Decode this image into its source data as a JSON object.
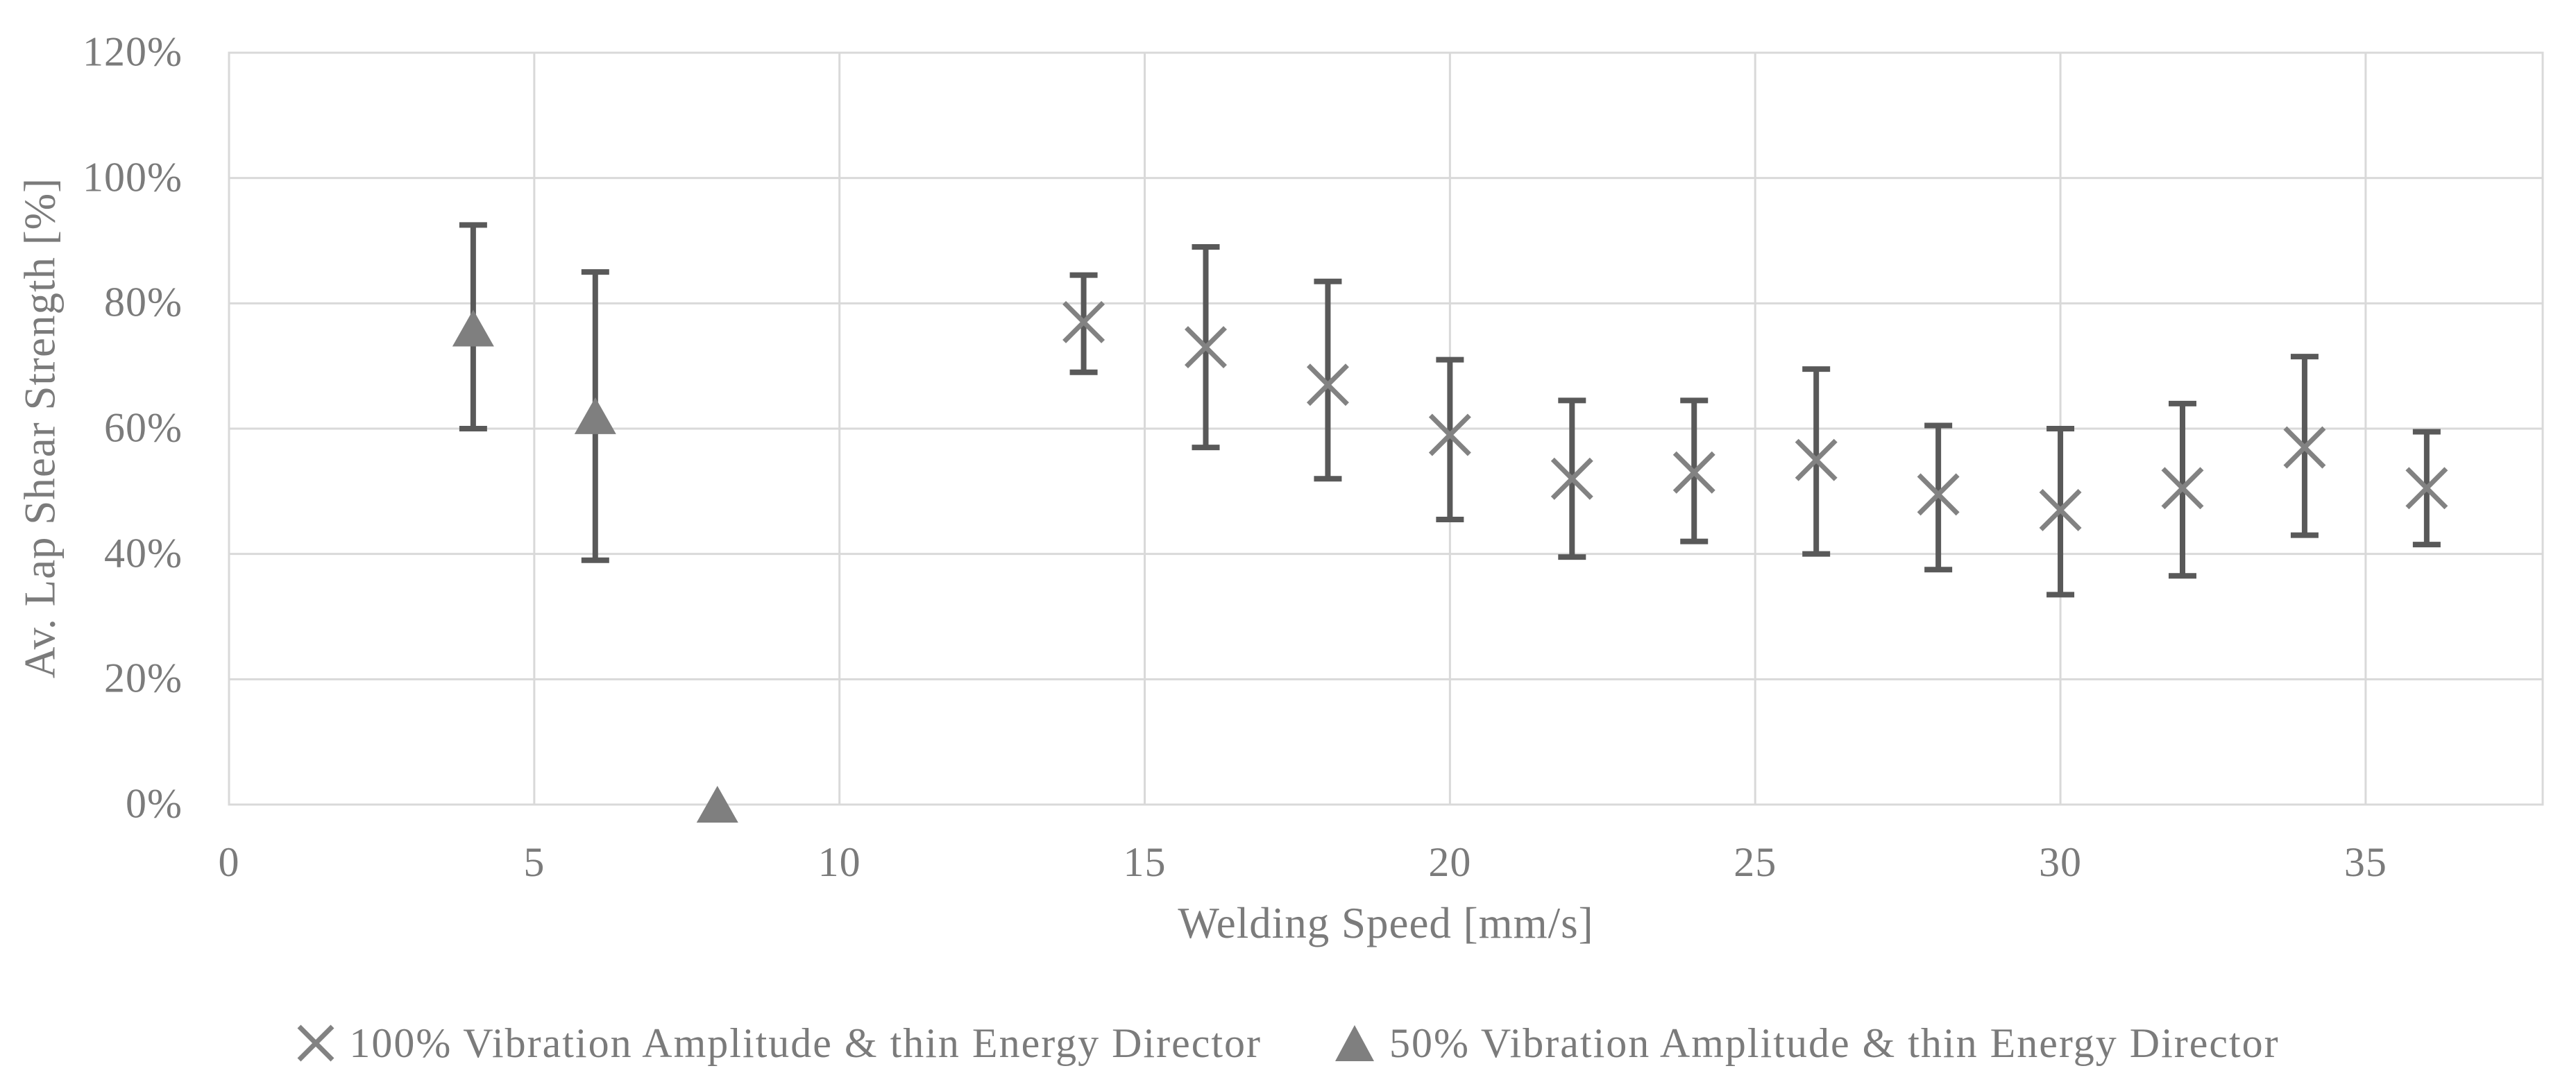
{
  "page": {
    "background": "#ffffff"
  },
  "chart_data": {
    "type": "scatter",
    "title": "",
    "xlabel": "Welding Speed [mm/s]",
    "ylabel": "Av. Lap Shear Strength [%]",
    "xlim": [
      0,
      37.9
    ],
    "ylim": [
      0,
      120
    ],
    "grid": true,
    "legend_position": "bottom",
    "x_ticks": [
      {
        "label": "0",
        "value": 0
      },
      {
        "label": "5",
        "value": 5
      },
      {
        "label": "10",
        "value": 10
      },
      {
        "label": "15",
        "value": 15
      },
      {
        "label": "20",
        "value": 20
      },
      {
        "label": "25",
        "value": 25
      },
      {
        "label": "30",
        "value": 30
      },
      {
        "label": "35",
        "value": 35
      }
    ],
    "y_ticks": [
      {
        "label": "0%",
        "value": 0
      },
      {
        "label": "20%",
        "value": 20
      },
      {
        "label": "40%",
        "value": 40
      },
      {
        "label": "60%",
        "value": 60
      },
      {
        "label": "80%",
        "value": 80
      },
      {
        "label": "100%",
        "value": 100
      },
      {
        "label": "120%",
        "value": 120
      }
    ],
    "series": [
      {
        "name": "100% Vibration Amplitude & thin Energy Director",
        "marker": "x",
        "marker_color": "#828282",
        "error_color": "#595959",
        "points": [
          {
            "x": 14,
            "y": 77,
            "hi": 84.5,
            "lo": 69
          },
          {
            "x": 16,
            "y": 73,
            "hi": 89,
            "lo": 57
          },
          {
            "x": 18,
            "y": 67,
            "hi": 83.5,
            "lo": 52
          },
          {
            "x": 20,
            "y": 59,
            "hi": 71,
            "lo": 45.5
          },
          {
            "x": 22,
            "y": 52,
            "hi": 64.5,
            "lo": 39.5
          },
          {
            "x": 24,
            "y": 53,
            "hi": 64.5,
            "lo": 42
          },
          {
            "x": 26,
            "y": 55,
            "hi": 69.5,
            "lo": 40
          },
          {
            "x": 28,
            "y": 49.5,
            "hi": 60.5,
            "lo": 37.5
          },
          {
            "x": 30,
            "y": 47,
            "hi": 60,
            "lo": 33.5
          },
          {
            "x": 32,
            "y": 50.5,
            "hi": 64,
            "lo": 36.5
          },
          {
            "x": 34,
            "y": 57,
            "hi": 71.5,
            "lo": 43
          },
          {
            "x": 36,
            "y": 50.5,
            "hi": 59.5,
            "lo": 41.5
          }
        ]
      },
      {
        "name": "50% Vibration Amplitude & thin Energy Director",
        "marker": "triangle",
        "marker_color": "#7f7f7f",
        "error_color": "#595959",
        "points": [
          {
            "x": 4,
            "y": 76,
            "hi": 92.5,
            "lo": 60
          },
          {
            "x": 6,
            "y": 62,
            "hi": 85,
            "lo": 39
          },
          {
            "x": 8,
            "y": 0,
            "hi": 0,
            "lo": 0
          }
        ]
      }
    ],
    "colors": {
      "gridline": "#d9d9d9",
      "plot_border": "#d9d9d9",
      "text": "#7b7b7b",
      "error_bar": "#595959",
      "marker_x": "#828282",
      "marker_triangle": "#7f7f7f"
    }
  }
}
